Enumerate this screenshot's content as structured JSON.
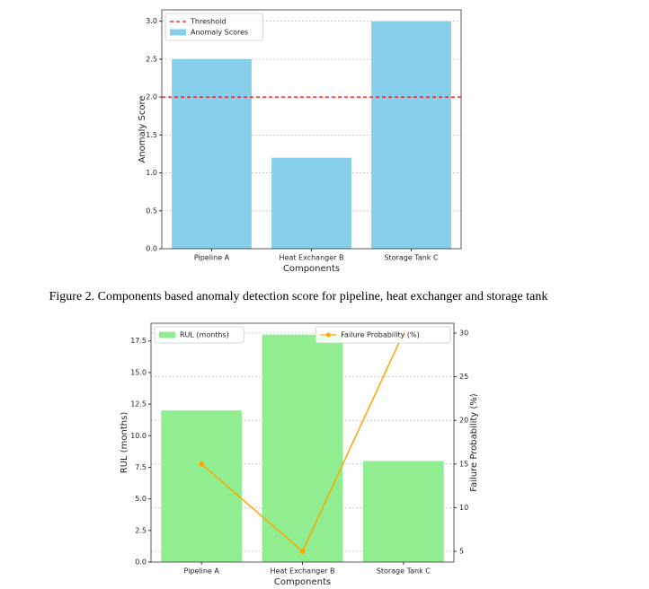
{
  "caption": "Figure 2. Components based anomaly detection score for pipeline, heat exchanger and storage tank",
  "chart_data": [
    {
      "type": "bar",
      "xlabel": "Components",
      "ylabel": "Anomaly Score",
      "categories": [
        "Pipeline A",
        "Heat Exchanger B",
        "Storage Tank C"
      ],
      "series": [
        {
          "name": "Anomaly Scores",
          "color": "#87ceeb",
          "values": [
            2.5,
            1.2,
            3.0
          ]
        }
      ],
      "hlines": [
        {
          "name": "Threshold",
          "value": 2.0,
          "color": "#ff0000"
        }
      ],
      "ylim": [
        0,
        3.15
      ],
      "yticks": [
        {
          "value": 0,
          "label": "0.0"
        },
        {
          "value": 0.5,
          "label": "0.5"
        },
        {
          "value": 1,
          "label": "1.0"
        },
        {
          "value": 1.5,
          "label": "1.5"
        },
        {
          "value": 2,
          "label": "2.0"
        },
        {
          "value": 2.5,
          "label": "2.5"
        },
        {
          "value": 3,
          "label": "3.0"
        }
      ],
      "grid": true,
      "legend": "upper left"
    },
    {
      "type": "bar",
      "xlabel": "Components",
      "ylabel": "RUL (months)",
      "y2label": "Failure Probability (%)",
      "categories": [
        "Pipeline A",
        "Heat Exchanger B",
        "Storage Tank C"
      ],
      "series": [
        {
          "name": "RUL (months)",
          "type": "bar",
          "color": "#90ee90",
          "values": [
            12,
            18,
            8
          ]
        },
        {
          "name": "Failure Probability (%)",
          "type": "line",
          "axis": "y2",
          "color": "#ffa500",
          "values": [
            15,
            5,
            30
          ]
        }
      ],
      "ylim": [
        0,
        18.9
      ],
      "yticks": [
        {
          "value": 0,
          "label": "0.0"
        },
        {
          "value": 2.5,
          "label": "2.5"
        },
        {
          "value": 5,
          "label": "5.0"
        },
        {
          "value": 7.5,
          "label": "7.5"
        },
        {
          "value": 10,
          "label": "10.0"
        },
        {
          "value": 12.5,
          "label": "12.5"
        },
        {
          "value": 15,
          "label": "15.0"
        },
        {
          "value": 17.5,
          "label": "17.5"
        }
      ],
      "y2lim": [
        3.77,
        31.13
      ],
      "y2ticks": [
        5,
        10,
        15,
        20,
        25,
        30
      ],
      "grid": true,
      "legend": "upper left",
      "legend2": "upper right"
    }
  ]
}
